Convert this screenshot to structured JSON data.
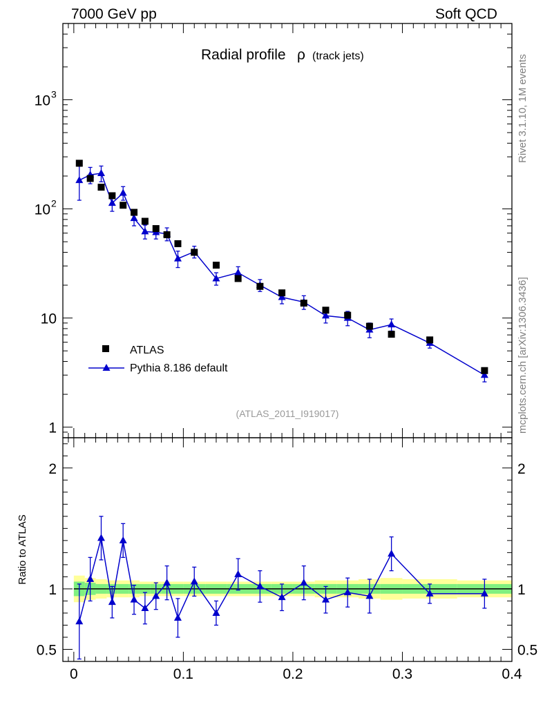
{
  "header": {
    "left": "7000 GeV pp",
    "right": "Soft QCD"
  },
  "side_labels": {
    "rivet": "Rivet 3.1.10,  1M events",
    "mcplots": "mcplots.cern.ch [arXiv:1306.3436]"
  },
  "colors": {
    "data": "#000000",
    "mc": "#0000cc",
    "band_outer": "#ffff99",
    "band_inner": "#80f080",
    "ref_label": "#999999"
  },
  "chart_data": [
    {
      "type": "scatter",
      "title": "Radial profile",
      "title_symbol": "ρ",
      "title_suffix": "(track jets)",
      "ref_label": "(ATLAS_2011_I919017)",
      "yscale": "log",
      "xlim": [
        -0.01,
        0.4
      ],
      "ylim": [
        0.8,
        5000
      ],
      "y_ticks": [
        {
          "value": 1,
          "label": "1"
        },
        {
          "value": 10,
          "label": "10"
        },
        {
          "value": 100,
          "label": "10",
          "sup": "2"
        },
        {
          "value": 1000,
          "label": "10",
          "sup": "3"
        }
      ],
      "legend": {
        "position": "lower-left",
        "entries": [
          {
            "name": "ATLAS",
            "marker": "square"
          },
          {
            "name": "Pythia 8.186 default",
            "marker": "triangle-line"
          }
        ]
      },
      "x": [
        0.005,
        0.015,
        0.025,
        0.035,
        0.045,
        0.055,
        0.065,
        0.075,
        0.085,
        0.095,
        0.11,
        0.13,
        0.15,
        0.17,
        0.19,
        0.21,
        0.23,
        0.25,
        0.27,
        0.29,
        0.325,
        0.375
      ],
      "series": [
        {
          "name": "ATLAS",
          "values": [
            262,
            190,
            158,
            132,
            108,
            93,
            77,
            66,
            58,
            48,
            40,
            30.5,
            23,
            19.5,
            17,
            13.7,
            11.8,
            10.6,
            8.4,
            7.1,
            6.3,
            3.3
          ]
        },
        {
          "name": "Pythia 8.186 default",
          "values": [
            183,
            205,
            212,
            113,
            140,
            82,
            62,
            61,
            59,
            35,
            40.5,
            23,
            26,
            20,
            15.5,
            14,
            10.5,
            10,
            7.8,
            8.7,
            5.9,
            3.0
          ],
          "err_low": [
            63,
            35,
            35,
            18,
            20,
            12,
            9,
            8,
            8,
            6,
            5,
            3,
            3.5,
            2.5,
            2,
            2,
            1.5,
            1.5,
            1.2,
            1.1,
            0.6,
            0.4
          ],
          "err_high": [
            63,
            35,
            35,
            18,
            20,
            12,
            9,
            8,
            8,
            6,
            5,
            3,
            3.5,
            2.5,
            2,
            2,
            1.5,
            1.5,
            1.2,
            1.1,
            0.6,
            0.4
          ]
        }
      ]
    },
    {
      "type": "scatter",
      "ylabel": "Ratio to ATLAS",
      "xlim": [
        -0.01,
        0.4
      ],
      "ylim": [
        0.4,
        2.25
      ],
      "y_ticks": [
        {
          "value": 0.5,
          "label": "0.5"
        },
        {
          "value": 1,
          "label": "1"
        },
        {
          "value": 2,
          "label": "2"
        }
      ],
      "x_ticks": [
        {
          "value": 0,
          "label": "0"
        },
        {
          "value": 0.1,
          "label": "0.1"
        },
        {
          "value": 0.2,
          "label": "0.2"
        },
        {
          "value": 0.3,
          "label": "0.3"
        },
        {
          "value": 0.4,
          "label": "0.4"
        }
      ],
      "reference_line": 1,
      "band_edges": [
        0.0,
        0.01,
        0.02,
        0.03,
        0.04,
        0.05,
        0.06,
        0.07,
        0.08,
        0.09,
        0.1,
        0.12,
        0.14,
        0.16,
        0.18,
        0.2,
        0.22,
        0.24,
        0.26,
        0.28,
        0.3,
        0.35,
        0.4
      ],
      "band_outer": [
        0.11,
        0.09,
        0.08,
        0.07,
        0.07,
        0.07,
        0.06,
        0.06,
        0.06,
        0.06,
        0.06,
        0.06,
        0.06,
        0.06,
        0.06,
        0.06,
        0.07,
        0.07,
        0.08,
        0.09,
        0.08,
        0.07
      ],
      "band_inner": [
        0.06,
        0.05,
        0.04,
        0.04,
        0.04,
        0.04,
        0.04,
        0.04,
        0.04,
        0.04,
        0.04,
        0.04,
        0.04,
        0.04,
        0.04,
        0.04,
        0.04,
        0.04,
        0.04,
        0.04,
        0.04,
        0.04
      ],
      "series": [
        {
          "name": "Pythia 8.186 default",
          "values": [
            0.73,
            1.08,
            1.42,
            0.89,
            1.4,
            0.91,
            0.84,
            0.94,
            1.05,
            0.76,
            1.06,
            0.8,
            1.12,
            1.02,
            0.93,
            1.05,
            0.91,
            0.97,
            0.94,
            1.29,
            0.96,
            0.96
          ],
          "err_low": [
            0.31,
            0.18,
            0.18,
            0.13,
            0.14,
            0.12,
            0.13,
            0.11,
            0.14,
            0.16,
            0.12,
            0.1,
            0.13,
            0.13,
            0.11,
            0.14,
            0.11,
            0.12,
            0.14,
            0.14,
            0.08,
            0.12
          ],
          "err_high": [
            0.31,
            0.18,
            0.18,
            0.13,
            0.14,
            0.12,
            0.13,
            0.11,
            0.14,
            0.16,
            0.12,
            0.1,
            0.13,
            0.13,
            0.11,
            0.14,
            0.11,
            0.12,
            0.14,
            0.14,
            0.08,
            0.12
          ]
        }
      ]
    }
  ]
}
